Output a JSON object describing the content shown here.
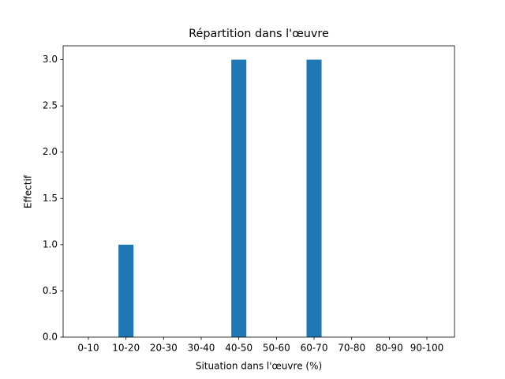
{
  "chart_data": {
    "type": "bar",
    "title": "Répartition dans l'œuvre",
    "x_label": "Situation dans l'œuvre (%)",
    "y_label": "Effectif",
    "categories": [
      "0-10",
      "10-20",
      "20-30",
      "30-40",
      "40-50",
      "50-60",
      "60-70",
      "70-80",
      "80-90",
      "90-100"
    ],
    "values": [
      0,
      1,
      0,
      0,
      3,
      0,
      3,
      0,
      0,
      0
    ],
    "color": "#1f77b4",
    "ylim": [
      0,
      3.15
    ],
    "yticks": [
      {
        "value": 0,
        "label": "0.0"
      },
      0.5,
      {
        "value": 1,
        "label": "1.0"
      },
      1.5,
      {
        "value": 2,
        "label": "2.0"
      },
      2.5,
      {
        "value": 3,
        "label": "3.0"
      }
    ]
  }
}
